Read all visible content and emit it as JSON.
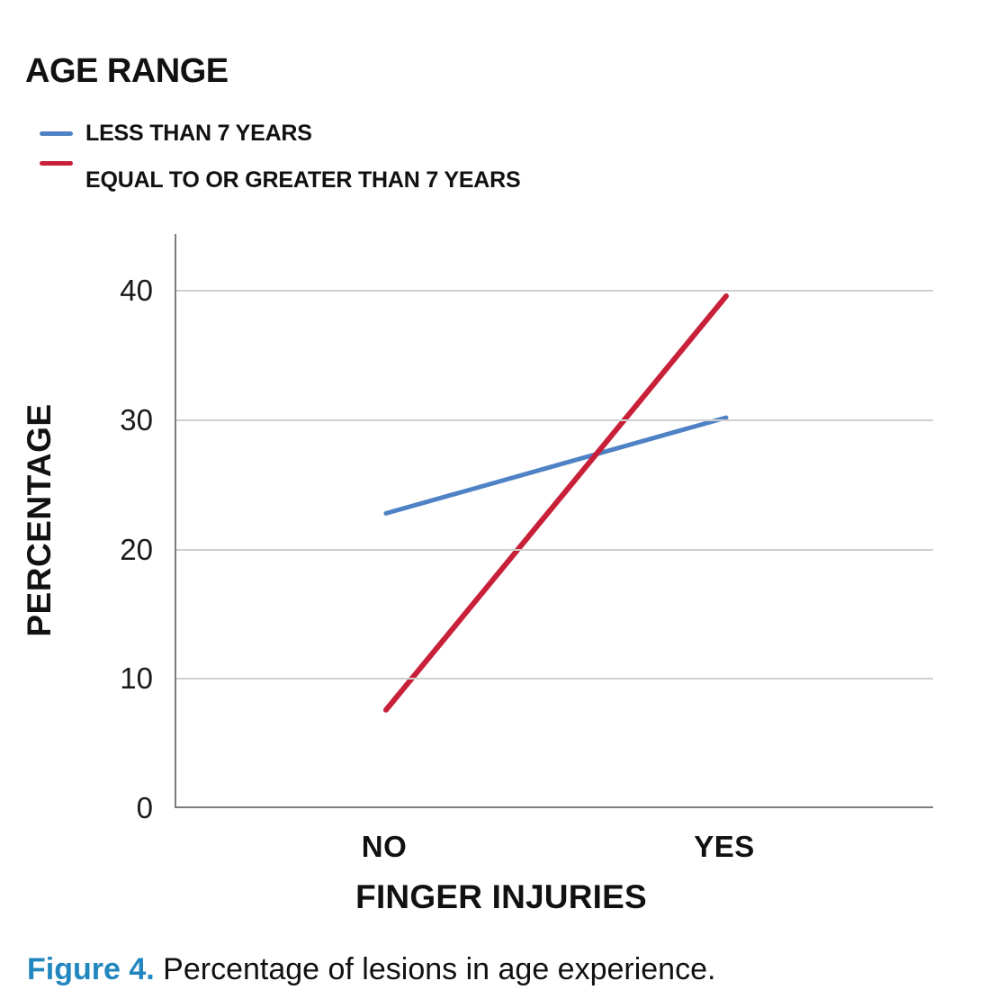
{
  "legend": {
    "title": "AGE RANGE",
    "items": [
      {
        "label": "LESS THAN 7 YEARS",
        "color": "#4E82C4"
      },
      {
        "label": "EQUAL TO OR GREATER THAN 7 YEARS",
        "color": "#C9203A"
      }
    ]
  },
  "chart_data": {
    "type": "line",
    "title": "AGE RANGE",
    "categories": [
      "NO",
      "YES"
    ],
    "series": [
      {
        "name": "LESS THAN 7 YEARS",
        "color": "#4E82C4",
        "values": [
          22.8,
          30.2
        ]
      },
      {
        "name": "EQUAL TO OR GREATER THAN 7 YEARS",
        "color": "#C9203A",
        "values": [
          7.6,
          39.6
        ]
      }
    ],
    "xlabel": "FINGER INJURIES",
    "ylabel": "PERCENTAGE",
    "yticks": [
      0,
      10,
      20,
      30,
      40
    ],
    "ylim": [
      0,
      44.4
    ],
    "grid": true,
    "legend_position": "top-left"
  },
  "caption": {
    "prefix": "Figure 4.",
    "text": "Percentage of lesions in age experience.",
    "prefix_color": "#2187BE"
  },
  "colors": {
    "axis": "#7d7d7d",
    "gridline": "#cfcfcf",
    "text": "#111111"
  }
}
